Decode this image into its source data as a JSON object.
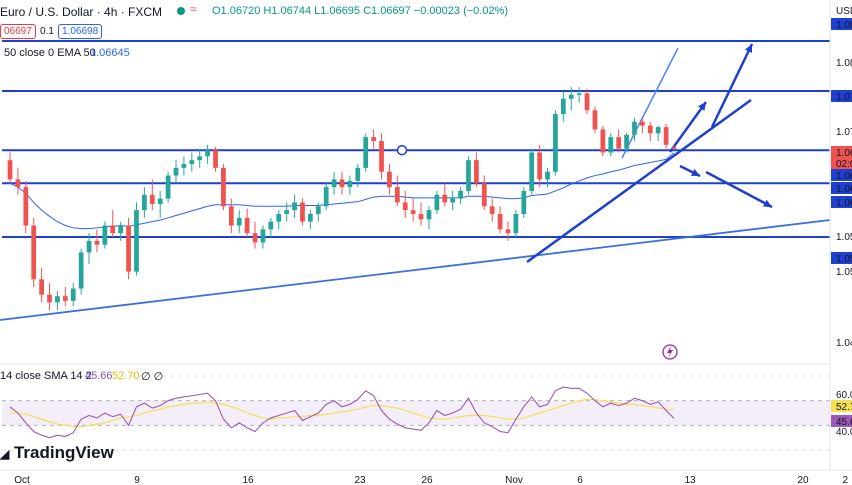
{
  "header": {
    "symbol_title": "Euro / U.S. Dollar · 4h · FXCM",
    "ohlc": "O1.06720 H1.06744 L1.06695 C1.06697 −0.00023 (−0.02%)",
    "bid": "06697",
    "spread": "0.1",
    "ask": "1.06698",
    "ema_legend_label": "50 close 0 EMA 50",
    "ema_value": "1.06645",
    "rsi_legend_label": "14 close SMA 14 2",
    "rsi_value": "45.66",
    "rsi_sma_value": "52.70",
    "rsi_extra": "∅ ∅"
  },
  "price_axis": {
    "currency": "USD",
    "labels": [
      "1.08",
      "1.08",
      "1.07",
      "1.07",
      "1.06",
      "02:0",
      "1.06",
      "1.06",
      "1.06",
      "1.05",
      "1.05",
      "1.05",
      "1.04"
    ]
  },
  "rsi_axis": {
    "labels": [
      "60.0",
      "52.7",
      "45.6",
      "40.0"
    ]
  },
  "time_axis": {
    "labels": [
      "Oct",
      "9",
      "16",
      "23",
      "26",
      "Nov",
      "6",
      "13",
      "20",
      "2"
    ]
  },
  "branding": {
    "logo_text": "TradingView"
  },
  "colors": {
    "up": "#26a69a",
    "down": "#ef5350",
    "ema": "#2962ff",
    "drawing": "#1e3fcf",
    "rsi": "#9c59b6",
    "rsi_sma": "#f5e050",
    "rsi_band": "#f3eefa"
  },
  "chart_data": {
    "type": "candlestick",
    "instrument": "EURUSD",
    "timeframe": "4h",
    "candles": [
      [
        1.0655,
        1.0665,
        1.0625,
        1.063
      ],
      [
        1.063,
        1.0645,
        1.061,
        1.062
      ],
      [
        1.062,
        1.0628,
        1.056,
        1.057
      ],
      [
        1.057,
        1.058,
        1.049,
        1.05
      ],
      [
        1.05,
        1.0515,
        1.047,
        1.048
      ],
      [
        1.048,
        1.0495,
        1.046,
        1.047
      ],
      [
        1.047,
        1.0485,
        1.046,
        1.0478
      ],
      [
        1.0478,
        1.049,
        1.0465,
        1.0472
      ],
      [
        1.0472,
        1.0495,
        1.0465,
        1.0488
      ],
      [
        1.0488,
        1.054,
        1.048,
        1.0535
      ],
      [
        1.0535,
        1.056,
        1.052,
        1.055
      ],
      [
        1.055,
        1.0565,
        1.0535,
        1.0545
      ],
      [
        1.0545,
        1.0575,
        1.054,
        1.057
      ],
      [
        1.057,
        1.059,
        1.0555,
        1.056
      ],
      [
        1.056,
        1.0575,
        1.055,
        1.057
      ],
      [
        1.057,
        1.058,
        1.05,
        1.051
      ],
      [
        1.051,
        1.06,
        1.0505,
        1.059
      ],
      [
        1.059,
        1.062,
        1.058,
        1.061
      ],
      [
        1.061,
        1.063,
        1.059,
        1.0598
      ],
      [
        1.0598,
        1.0615,
        1.058,
        1.0605
      ],
      [
        1.0605,
        1.064,
        1.06,
        1.0635
      ],
      [
        1.0635,
        1.0655,
        1.0625,
        1.0645
      ],
      [
        1.0645,
        1.066,
        1.0635,
        1.065
      ],
      [
        1.065,
        1.0665,
        1.064,
        1.0655
      ],
      [
        1.0655,
        1.067,
        1.0645,
        1.066
      ],
      [
        1.066,
        1.0675,
        1.065,
        1.0668
      ],
      [
        1.0668,
        1.0672,
        1.064,
        1.0645
      ],
      [
        1.0645,
        1.065,
        1.059,
        1.0595
      ],
      [
        1.0595,
        1.0605,
        1.056,
        1.057
      ],
      [
        1.057,
        1.059,
        1.056,
        1.058
      ],
      [
        1.058,
        1.0592,
        1.0555,
        1.056
      ],
      [
        1.056,
        1.0575,
        1.054,
        1.0548
      ],
      [
        1.0548,
        1.057,
        1.054,
        1.0565
      ],
      [
        1.0565,
        1.058,
        1.0555,
        1.0575
      ],
      [
        1.0575,
        1.059,
        1.0565,
        1.0585
      ],
      [
        1.0585,
        1.06,
        1.0575,
        1.059
      ],
      [
        1.059,
        1.061,
        1.058,
        1.06
      ],
      [
        1.06,
        1.0605,
        1.057,
        1.0575
      ],
      [
        1.0575,
        1.059,
        1.0565,
        1.0585
      ],
      [
        1.0585,
        1.06,
        1.0575,
        1.0595
      ],
      [
        1.0595,
        1.0625,
        1.059,
        1.062
      ],
      [
        1.062,
        1.064,
        1.061,
        1.063
      ],
      [
        1.063,
        1.064,
        1.061,
        1.062
      ],
      [
        1.062,
        1.0635,
        1.061,
        1.0628
      ],
      [
        1.0628,
        1.065,
        1.062,
        1.0645
      ],
      [
        1.0645,
        1.069,
        1.064,
        1.0685
      ],
      [
        1.0685,
        1.0695,
        1.067,
        1.068
      ],
      [
        1.068,
        1.069,
        1.063,
        1.064
      ],
      [
        1.064,
        1.065,
        1.061,
        1.062
      ],
      [
        1.062,
        1.0635,
        1.0595,
        1.06
      ],
      [
        1.06,
        1.0615,
        1.058,
        1.059
      ],
      [
        1.059,
        1.0605,
        1.0575,
        1.0585
      ],
      [
        1.0585,
        1.06,
        1.057,
        1.0578
      ],
      [
        1.0578,
        1.0595,
        1.0565,
        1.059
      ],
      [
        1.059,
        1.0615,
        1.0585,
        1.061
      ],
      [
        1.061,
        1.0625,
        1.0595,
        1.06
      ],
      [
        1.06,
        1.0615,
        1.059,
        1.0605
      ],
      [
        1.0605,
        1.062,
        1.0598,
        1.0615
      ],
      [
        1.0615,
        1.066,
        1.061,
        1.0655
      ],
      [
        1.0655,
        1.0665,
        1.062,
        1.0625
      ],
      [
        1.0625,
        1.0635,
        1.059,
        1.0595
      ],
      [
        1.0595,
        1.0605,
        1.0575,
        1.0585
      ],
      [
        1.0585,
        1.0595,
        1.056,
        1.0565
      ],
      [
        1.0565,
        1.0575,
        1.055,
        1.056
      ],
      [
        1.056,
        1.059,
        1.0555,
        1.0585
      ],
      [
        1.0585,
        1.062,
        1.058,
        1.0615
      ],
      [
        1.0615,
        1.067,
        1.061,
        1.0665
      ],
      [
        1.0665,
        1.0675,
        1.062,
        1.063
      ],
      [
        1.063,
        1.0645,
        1.062,
        1.064
      ],
      [
        1.064,
        1.072,
        1.0635,
        1.0715
      ],
      [
        1.0715,
        1.0745,
        1.0705,
        1.0735
      ],
      [
        1.0735,
        1.075,
        1.072,
        1.074
      ],
      [
        1.074,
        1.075,
        1.073,
        1.0742
      ],
      [
        1.0742,
        1.0748,
        1.0715,
        1.072
      ],
      [
        1.072,
        1.0725,
        1.069,
        1.0695
      ],
      [
        1.0695,
        1.07,
        1.066,
        1.0665
      ],
      [
        1.0665,
        1.069,
        1.066,
        1.0685
      ],
      [
        1.0685,
        1.0695,
        1.0665,
        1.067
      ],
      [
        1.067,
        1.069,
        1.0665,
        1.0688
      ],
      [
        1.0688,
        1.071,
        1.068,
        1.0705
      ],
      [
        1.0705,
        1.0712,
        1.069,
        1.07
      ],
      [
        1.07,
        1.0705,
        1.068,
        1.069
      ],
      [
        1.069,
        1.07,
        1.068,
        1.0698
      ],
      [
        1.0698,
        1.0702,
        1.067,
        1.0675
      ],
      [
        1.0672,
        1.0674,
        1.06695,
        1.06697
      ]
    ],
    "ema50": [
      1.0625,
      1.062,
      1.0612,
      1.06,
      1.059,
      1.0582,
      1.0575,
      1.057,
      1.0567,
      1.0566,
      1.0566,
      1.0567,
      1.0568,
      1.0569,
      1.057,
      1.0569,
      1.0571,
      1.0573,
      1.0575,
      1.0577,
      1.058,
      1.0583,
      1.0586,
      1.0589,
      1.0592,
      1.0595,
      1.0597,
      1.0597,
      1.0597,
      1.0597,
      1.0596,
      1.0595,
      1.0595,
      1.0595,
      1.0595,
      1.0595,
      1.0596,
      1.0596,
      1.0596,
      1.0596,
      1.0597,
      1.0598,
      1.0599,
      1.06,
      1.0601,
      1.0604,
      1.0607,
      1.0608,
      1.0608,
      1.0608,
      1.0607,
      1.0606,
      1.0606,
      1.0606,
      1.0606,
      1.0606,
      1.0606,
      1.0606,
      1.0608,
      1.0608,
      1.0608,
      1.0607,
      1.0606,
      1.0605,
      1.0605,
      1.0606,
      1.0609,
      1.061,
      1.0611,
      1.0615,
      1.0619,
      1.0624,
      1.0628,
      1.0632,
      1.0635,
      1.0637,
      1.064,
      1.0642,
      1.0645,
      1.0648,
      1.065,
      1.0652,
      1.0654,
      1.0656,
      1.06645
    ],
    "rsi": [
      55,
      50,
      42,
      35,
      32,
      30,
      32,
      31,
      34,
      45,
      48,
      46,
      50,
      47,
      49,
      40,
      55,
      58,
      54,
      56,
      60,
      62,
      63,
      64,
      65,
      66,
      60,
      45,
      38,
      42,
      38,
      35,
      42,
      46,
      48,
      50,
      52,
      44,
      47,
      50,
      57,
      60,
      55,
      57,
      61,
      68,
      64,
      52,
      45,
      41,
      38,
      37,
      36,
      42,
      52,
      48,
      50,
      53,
      62,
      50,
      42,
      39,
      35,
      34,
      45,
      55,
      63,
      55,
      57,
      68,
      71,
      70,
      70,
      66,
      60,
      55,
      58,
      56,
      58,
      62,
      60,
      57,
      59,
      52,
      45.66
    ],
    "rsi_sma": [
      50,
      50,
      49,
      47,
      45,
      43,
      41,
      40,
      39,
      39,
      40,
      41,
      42,
      44,
      46,
      47,
      48,
      50,
      52,
      53,
      55,
      56,
      57,
      58,
      58,
      59,
      58,
      57,
      55,
      53,
      50,
      48,
      46,
      45,
      46,
      46,
      47,
      47,
      48,
      48,
      49,
      50,
      51,
      52,
      53,
      55,
      56,
      56,
      55,
      54,
      52,
      50,
      48,
      46,
      45,
      45,
      46,
      47,
      48,
      48,
      48,
      47,
      46,
      45,
      45,
      46,
      48,
      50,
      52,
      54,
      56,
      58,
      60,
      61,
      61,
      60,
      59,
      58,
      57,
      57,
      56,
      55,
      54,
      53,
      52.7
    ],
    "horizontal_levels": [
      1.081,
      1.0745,
      1.0668,
      1.0625,
      1.0555
    ],
    "rsi_range": [
      20,
      80
    ],
    "rsi_guides": [
      60.0,
      40.0
    ],
    "price_range": [
      1.0395,
      1.084
    ],
    "grid": false
  }
}
